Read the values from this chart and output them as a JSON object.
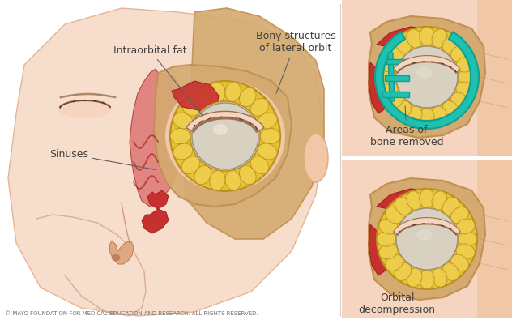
{
  "bg_color": "#ffffff",
  "skin_light": "#f5d5c0",
  "skin_light2": "#f0c8a8",
  "skin_mid": "#e0a880",
  "skin_dark": "#c08060",
  "skin_line": "#c09070",
  "bone_tan": "#d4aa70",
  "bone_dark": "#b88a50",
  "bone_edge": "#c09050",
  "fat_yellow": "#e8c030",
  "fat_bright": "#f0d050",
  "fat_dark": "#c8a020",
  "fat_edge": "#b89020",
  "red_tissue": "#c83030",
  "red_dark": "#a02020",
  "red_light": "#d85050",
  "teal": "#20c0b0",
  "teal_dark": "#10a090",
  "eye_white": "#d8d0c0",
  "eye_shadow": "#b0a890",
  "lid_color": "#9a7050",
  "text_color": "#404040",
  "arrow_color": "#606060",
  "copyright_color": "#707070",
  "label_sinuses": "Sinuses",
  "label_intraorbital": "Intraorbital fat",
  "label_bony": "Bony structures\nof lateral orbit",
  "label_areas": "Areas of\nbone removed",
  "label_orbital": "Orbital\ndecompression",
  "copyright": "© MAYO FOUNDATION FOR MEDICAL EDUCATION AND RESEARCH. ALL RIGHTS RESERVED.",
  "fig_width": 6.32,
  "fig_height": 3.95,
  "dpi": 100
}
